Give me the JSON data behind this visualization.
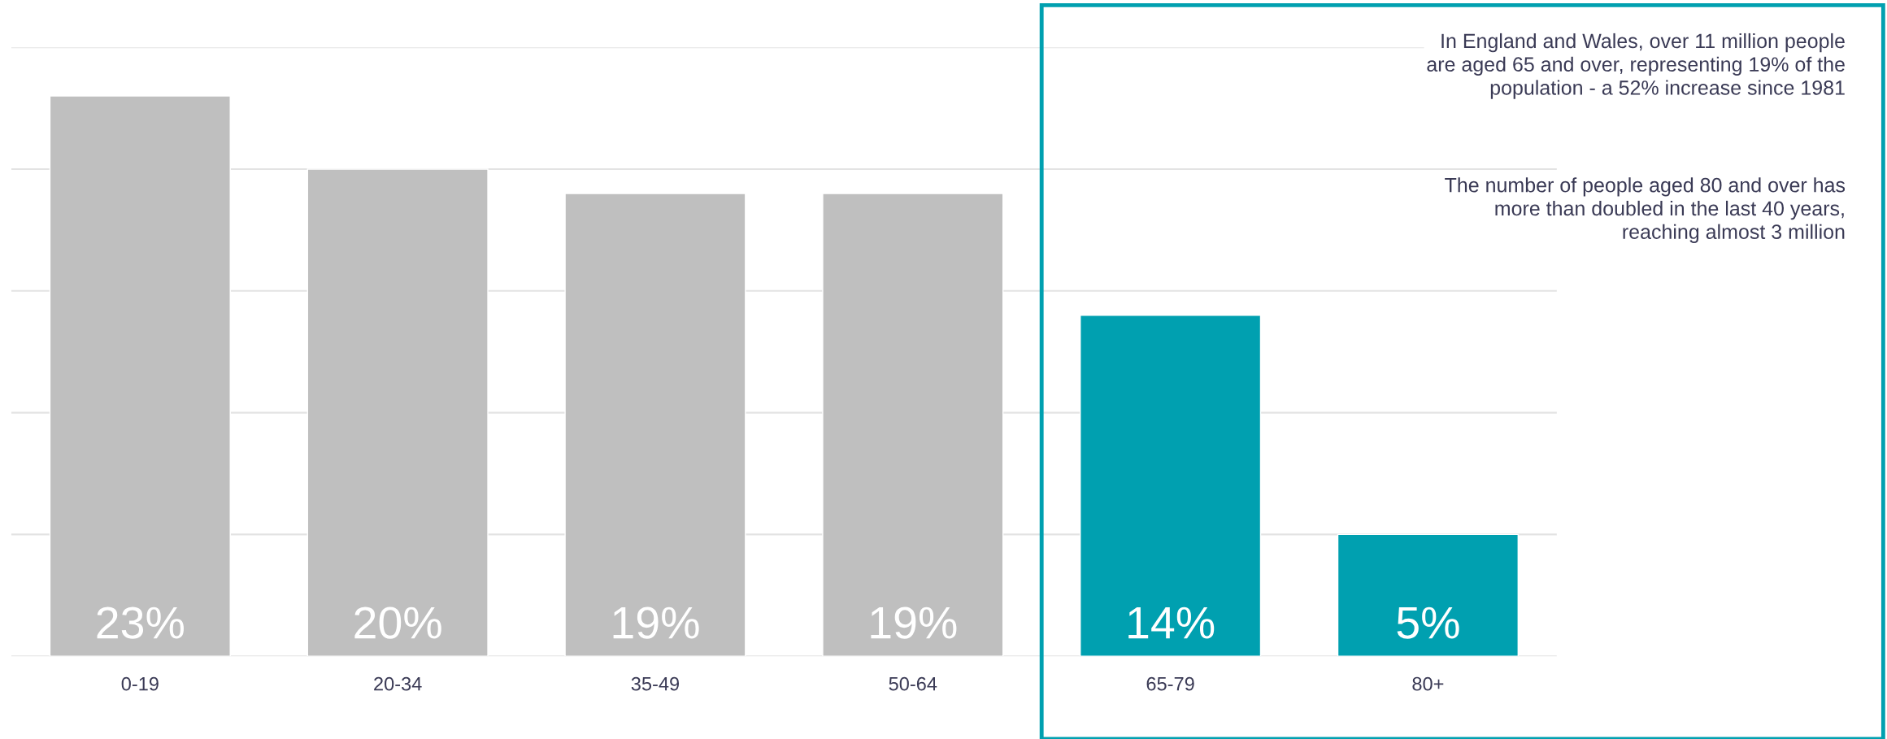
{
  "chart_data": {
    "type": "bar",
    "categories": [
      "0-19",
      "20-34",
      "35-49",
      "50-64",
      "65-79",
      "80+"
    ],
    "values": [
      23,
      20,
      19,
      19,
      14,
      5
    ],
    "colors": [
      "#bfbfbf",
      "#bfbfbf",
      "#bfbfbf",
      "#bfbfbf",
      "#00a0b0",
      "#00a0b0"
    ],
    "value_labels": [
      "23%",
      "20%",
      "19%",
      "19%",
      "14%",
      "5%"
    ],
    "relative": false,
    "ylim": [
      0,
      25
    ],
    "yticks": [
      {
        "value": 0,
        "label": null
      },
      {
        "value": 5,
        "label": null
      },
      {
        "value": 10,
        "label": null
      },
      {
        "value": 15,
        "label": null
      },
      {
        "value": 20,
        "label": null
      },
      {
        "value": 25,
        "label": null
      }
    ],
    "tick_labels": "x",
    "grid": "y",
    "annotations": [
      "In England and Wales, over 11 million people\nare aged 65 and over, representing 19% of the\npopulation - a 52% increase since 1981",
      "The number of people aged 80 and over has\nmore than doubled in the last 40 years,\nreaching almost 3 million"
    ]
  }
}
